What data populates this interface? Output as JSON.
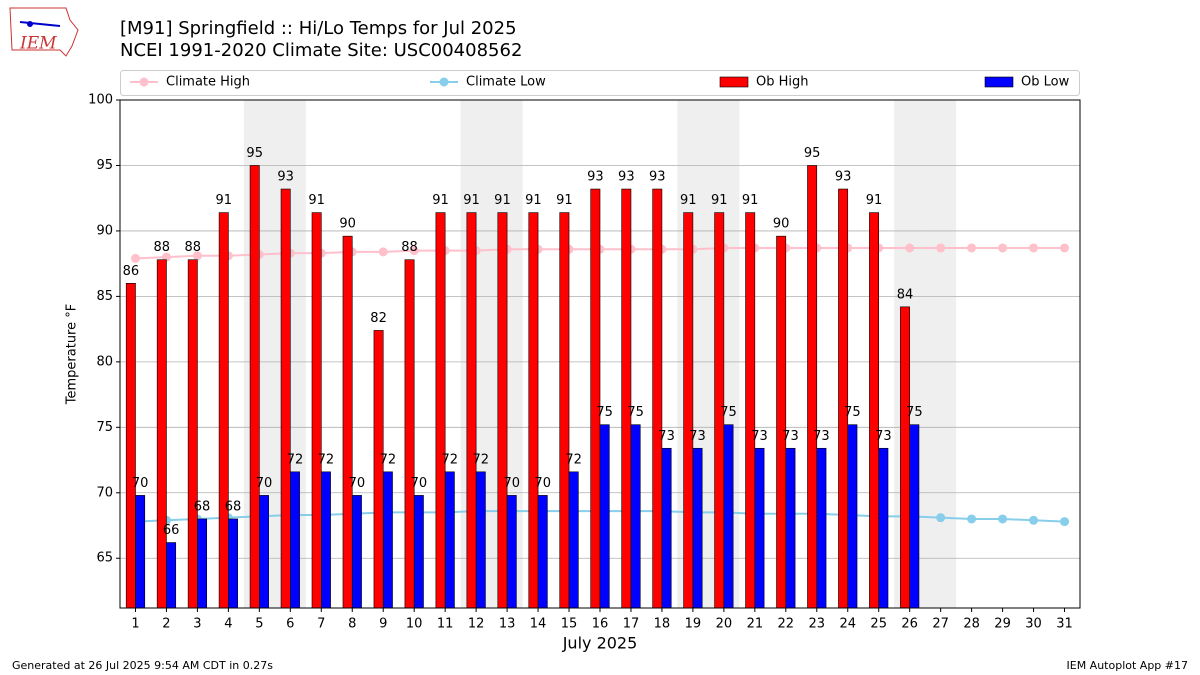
{
  "chart_data": {
    "type": "bar",
    "title": "[M91] Springfield :: Hi/Lo Temps for Jul 2025",
    "subtitle": "NCEI 1991-2020 Climate Site: USC00408562",
    "logo_text": "IEM",
    "ylabel": "Temperature °F",
    "xlabel": "July 2025",
    "footer_left": "Generated at 26 Jul 2025 9:54 AM CDT in 0.27s",
    "footer_right": "IEM Autoplot App #17",
    "categories": [
      "1",
      "2",
      "3",
      "4",
      "5",
      "6",
      "7",
      "8",
      "9",
      "10",
      "11",
      "12",
      "13",
      "14",
      "15",
      "16",
      "17",
      "18",
      "19",
      "20",
      "21",
      "22",
      "23",
      "24",
      "25",
      "26",
      "27",
      "28",
      "29",
      "30",
      "31"
    ],
    "shaded_categories": [
      "5",
      "6",
      "12",
      "13",
      "19",
      "20",
      "26",
      "27"
    ],
    "series": [
      {
        "name": "Climate High",
        "type": "line",
        "color": "#ffc0cb",
        "values": [
          87.9,
          88.0,
          88.1,
          88.1,
          88.2,
          88.3,
          88.3,
          88.4,
          88.4,
          88.5,
          88.5,
          88.5,
          88.6,
          88.6,
          88.6,
          88.6,
          88.6,
          88.6,
          88.6,
          88.7,
          88.7,
          88.7,
          88.7,
          88.7,
          88.7,
          88.7,
          88.7,
          88.7,
          88.7,
          88.7,
          88.7
        ]
      },
      {
        "name": "Climate Low",
        "type": "line",
        "color": "#87ceeb",
        "values": [
          67.8,
          67.9,
          68.0,
          68.1,
          68.2,
          68.3,
          68.3,
          68.4,
          68.5,
          68.5,
          68.5,
          68.6,
          68.6,
          68.6,
          68.6,
          68.6,
          68.6,
          68.6,
          68.5,
          68.5,
          68.4,
          68.4,
          68.4,
          68.3,
          68.2,
          68.2,
          68.1,
          68.0,
          68.0,
          67.9,
          67.8
        ]
      },
      {
        "name": "Ob High",
        "type": "bar",
        "color": "#ff0000",
        "values": [
          86.0,
          87.8,
          87.8,
          91.4,
          95.0,
          93.2,
          91.4,
          89.6,
          82.4,
          87.8,
          91.4,
          91.4,
          91.4,
          91.4,
          91.4,
          93.2,
          93.2,
          93.2,
          91.4,
          91.4,
          91.4,
          89.6,
          95.0,
          93.2,
          91.4,
          84.2,
          null,
          null,
          null,
          null,
          null
        ],
        "value_labels": [
          "86",
          "88",
          "88",
          "91",
          "95",
          "93",
          "91",
          "90",
          "82",
          "88",
          "91",
          "91",
          "91",
          "91",
          "91",
          "93",
          "93",
          "93",
          "91",
          "91",
          "91",
          "90",
          "95",
          "93",
          "91",
          "84",
          null,
          null,
          null,
          null,
          null
        ]
      },
      {
        "name": "Ob Low",
        "type": "bar",
        "color": "#0000ff",
        "values": [
          69.8,
          66.2,
          68.0,
          68.0,
          69.8,
          71.6,
          71.6,
          69.8,
          71.6,
          69.8,
          71.6,
          71.6,
          69.8,
          69.8,
          71.6,
          75.2,
          75.2,
          73.4,
          73.4,
          75.2,
          73.4,
          73.4,
          73.4,
          75.2,
          73.4,
          75.2,
          null,
          null,
          null,
          null,
          null
        ],
        "value_labels": [
          "70",
          "66",
          "68",
          "68",
          "70",
          "72",
          "72",
          "70",
          "72",
          "70",
          "72",
          "72",
          "70",
          "70",
          "72",
          "75",
          "75",
          "73",
          "73",
          "75",
          "73",
          "73",
          "73",
          "75",
          "73",
          "75",
          null,
          null,
          null,
          null,
          null
        ]
      }
    ],
    "ylim": [
      61.2,
      100
    ],
    "yticks": [
      65,
      70,
      75,
      80,
      85,
      90,
      95,
      100
    ],
    "grid": true,
    "legend": "top"
  }
}
